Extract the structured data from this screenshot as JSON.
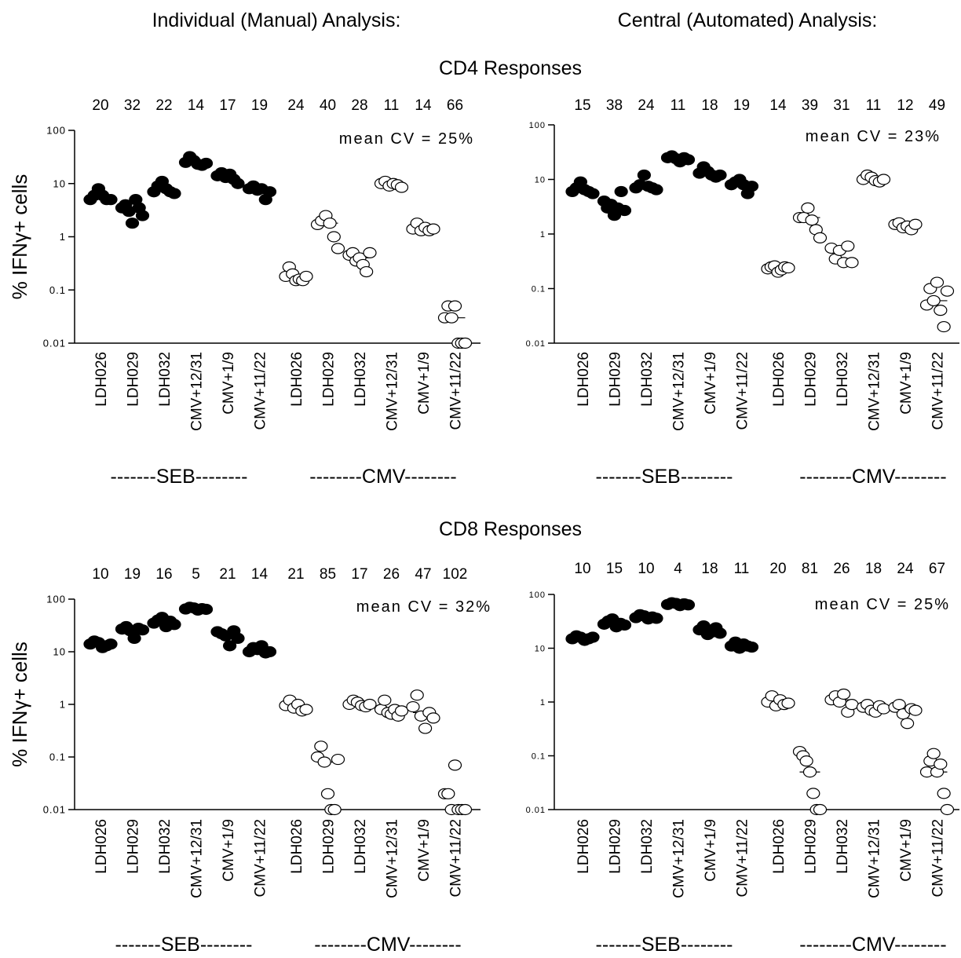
{
  "headers": {
    "left": "Individual (Manual) Analysis:",
    "right": "Central (Automated) Analysis:",
    "cd4": "CD4 Responses",
    "cd8": "CD8 Responses"
  },
  "common": {
    "ylabel": "% IFNγ+ cells",
    "yticks": [
      "100",
      "10",
      "1",
      "0.1",
      "0.01"
    ],
    "seb_label": "-------SEB--------",
    "cmv_label": "--------CMV--------",
    "categories": [
      "LDH026",
      "LDH029",
      "LDH032",
      "CMV+12/31",
      "CMV+1/9",
      "CMV+11/22",
      "LDH026",
      "LDH029",
      "LDH032",
      "CMV+12/31",
      "CMV+1/9",
      "CMV+11/22"
    ],
    "filled_color": "#000000",
    "open_color": "#ffffff"
  },
  "chart_data": [
    {
      "panel": "CD4 manual",
      "type": "scatter",
      "y_scale": "log",
      "ylim": [
        0.01,
        100
      ],
      "ylabel": "% IFNγ+ cells",
      "cv_values": [
        "20",
        "32",
        "22",
        "14",
        "17",
        "19",
        "24",
        "40",
        "28",
        "11",
        "14",
        "66"
      ],
      "annotation": "mean CV = 25%",
      "groups": [
        [
          5,
          6,
          8,
          6,
          5,
          5
        ],
        [
          3.5,
          4,
          3,
          1.8,
          5,
          3.5,
          2.5
        ],
        [
          7,
          9,
          11,
          8,
          7,
          6.5
        ],
        [
          25,
          32,
          27,
          23,
          22,
          24
        ],
        [
          14,
          16,
          13,
          15,
          12,
          10
        ],
        [
          8,
          9,
          7.5,
          8,
          5,
          7
        ],
        [
          0.18,
          0.27,
          0.2,
          0.15,
          0.16,
          0.15,
          0.18
        ],
        [
          1.7,
          2,
          2.5,
          1.8,
          1,
          0.6
        ],
        [
          0.45,
          0.5,
          0.35,
          0.4,
          0.3,
          0.22,
          0.5
        ],
        [
          10,
          11,
          9,
          10,
          9.5,
          8.5
        ],
        [
          1.4,
          1.8,
          1.3,
          1.5,
          1.3,
          1.4
        ],
        [
          0.03,
          0.05,
          0.03,
          0.05,
          0.01,
          0.01,
          0.01
        ]
      ]
    },
    {
      "panel": "CD4 central",
      "type": "scatter",
      "y_scale": "log",
      "ylim": [
        0.01,
        100
      ],
      "cv_values": [
        "15",
        "38",
        "24",
        "11",
        "18",
        "19",
        "14",
        "39",
        "31",
        "11",
        "12",
        "49"
      ],
      "annotation": "mean CV = 23%",
      "groups": [
        [
          6,
          7,
          9,
          6.5,
          6,
          5.5
        ],
        [
          4,
          3,
          3.5,
          2.2,
          3,
          6,
          2.7
        ],
        [
          7,
          8,
          12,
          7.5,
          7,
          6.5
        ],
        [
          25,
          27,
          24,
          21,
          25,
          23
        ],
        [
          13,
          17,
          14,
          12,
          11,
          12
        ],
        [
          8,
          9,
          10,
          8,
          5.5,
          7.5
        ],
        [
          0.23,
          0.25,
          0.26,
          0.2,
          0.22,
          0.25,
          0.24
        ],
        [
          2,
          2,
          3,
          1.8,
          1.2,
          0.85
        ],
        [
          0.55,
          0.35,
          0.5,
          0.3,
          0.6,
          0.3
        ],
        [
          10,
          12,
          11,
          9.5,
          9,
          10
        ],
        [
          1.5,
          1.6,
          1.3,
          1.4,
          1.2,
          1.5
        ],
        [
          0.05,
          0.1,
          0.06,
          0.13,
          0.04,
          0.02,
          0.09
        ]
      ]
    },
    {
      "panel": "CD8 manual",
      "type": "scatter",
      "y_scale": "log",
      "ylim": [
        0.01,
        100
      ],
      "ylabel": "% IFNγ+ cells",
      "cv_values": [
        "10",
        "19",
        "16",
        "5",
        "21",
        "14",
        "21",
        "85",
        "17",
        "26",
        "47",
        "102"
      ],
      "annotation": "mean CV = 32%",
      "groups": [
        [
          14,
          16,
          15,
          12,
          13,
          14
        ],
        [
          27,
          30,
          25,
          18,
          28,
          26
        ],
        [
          35,
          40,
          45,
          30,
          38,
          33
        ],
        [
          65,
          70,
          68,
          62,
          66,
          64
        ],
        [
          24,
          22,
          20,
          13,
          25,
          18
        ],
        [
          10,
          12,
          11,
          13,
          9.5,
          10
        ],
        [
          0.95,
          1.2,
          0.85,
          1,
          0.75,
          0.8
        ],
        [
          0.1,
          0.16,
          0.08,
          0.02,
          0.01,
          0.01,
          0.09
        ],
        [
          1,
          1.2,
          1.1,
          0.95,
          0.9,
          1
        ],
        [
          0.8,
          1.2,
          0.7,
          0.65,
          0.8,
          0.6,
          0.75
        ],
        [
          0.9,
          1.5,
          0.6,
          0.35,
          0.7,
          0.55
        ],
        [
          0.02,
          0.02,
          0.01,
          0.07,
          0.01,
          0.01,
          0.01
        ]
      ]
    },
    {
      "panel": "CD8 central",
      "type": "scatter",
      "y_scale": "log",
      "ylim": [
        0.01,
        100
      ],
      "cv_values": [
        "10",
        "15",
        "10",
        "4",
        "18",
        "11",
        "20",
        "81",
        "26",
        "18",
        "24",
        "67"
      ],
      "annotation": "mean CV = 25%",
      "groups": [
        [
          15,
          17,
          16,
          14,
          15,
          16
        ],
        [
          28,
          32,
          35,
          25,
          29,
          27
        ],
        [
          37,
          42,
          40,
          35,
          38,
          36
        ],
        [
          65,
          70,
          68,
          62,
          67,
          64
        ],
        [
          22,
          26,
          18,
          20,
          24,
          19
        ],
        [
          11,
          13,
          10,
          12,
          11,
          10.5
        ],
        [
          1,
          1.3,
          0.85,
          1.1,
          0.9,
          0.95
        ],
        [
          0.12,
          0.1,
          0.08,
          0.05,
          0.02,
          0.01,
          0.01
        ],
        [
          1.1,
          1.3,
          1,
          1.4,
          0.65,
          0.9
        ],
        [
          0.8,
          0.9,
          0.7,
          0.65,
          0.85,
          0.75
        ],
        [
          0.8,
          0.9,
          0.6,
          0.4,
          0.75,
          0.7
        ],
        [
          0.05,
          0.08,
          0.11,
          0.05,
          0.07,
          0.02,
          0.01
        ]
      ]
    }
  ]
}
